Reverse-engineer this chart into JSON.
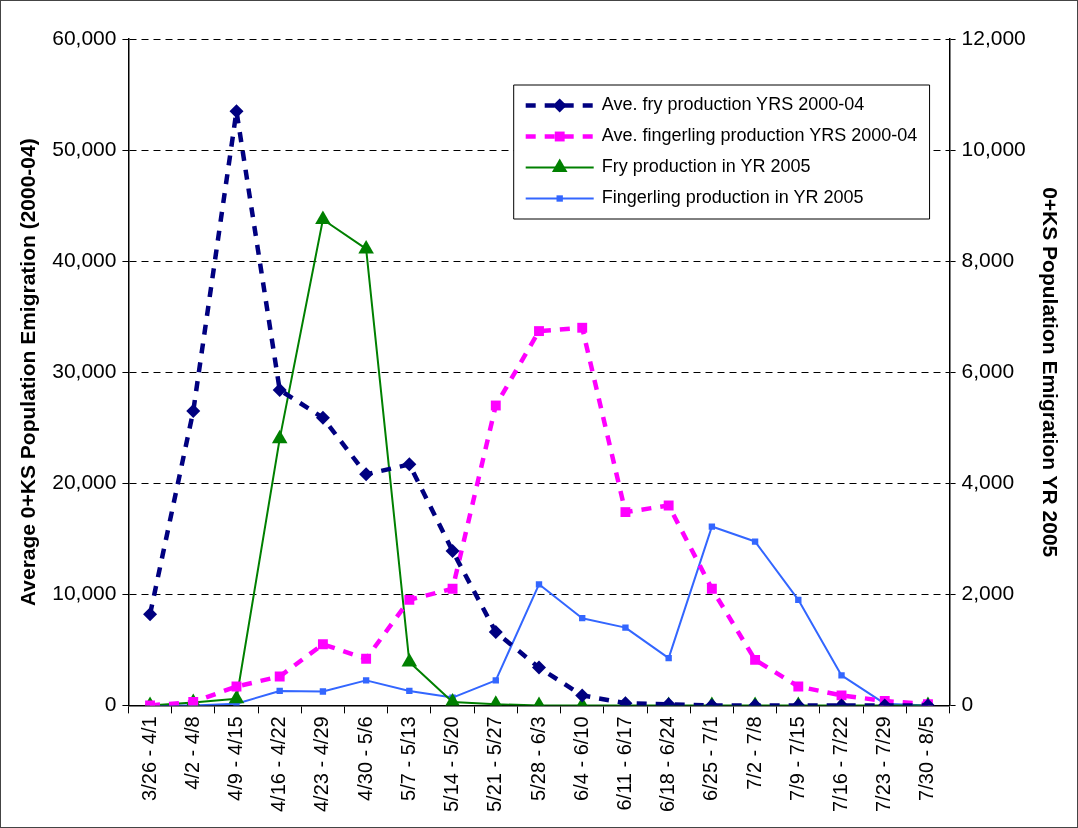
{
  "chart_data": {
    "type": "line",
    "ylabel": "Average 0+KS Population Emigration (2000-04)",
    "y2label": "0+KS Population Emigration YR 2005",
    "categories": [
      "3/26 - 4/1",
      "4/2 - 4/8",
      "4/9 - 4/15",
      "4/16 - 4/22",
      "4/23 - 4/29",
      "4/30 - 5/6",
      "5/7 - 5/13",
      "5/14 - 5/20",
      "5/21 - 5/27",
      "5/28 - 6/3",
      "6/4 - 6/10",
      "6/11 - 6/17",
      "6/18 - 6/24",
      "6/25 - 7/1",
      "7/2 - 7/8",
      "7/9 - 7/15",
      "7/16 - 7/22",
      "7/23 - 7/29",
      "7/30 - 8/5"
    ],
    "series": [
      {
        "name": "Ave. fry production YRS 2000-04",
        "color": "#000080",
        "marker": "diamond",
        "line_style": "dashed",
        "values": [
          8200,
          26500,
          53500,
          28400,
          25900,
          20800,
          21700,
          13900,
          6600,
          3400,
          900,
          200,
          100,
          0,
          0,
          0,
          0,
          0,
          0
        ]
      },
      {
        "name": "Ave. fingerling production YRS 2000-04",
        "color": "#ff00ff",
        "marker": "square",
        "line_style": "dashed",
        "values": [
          0,
          300,
          1700,
          2600,
          5500,
          4200,
          9500,
          10500,
          27000,
          33700,
          34000,
          17400,
          18000,
          10500,
          4100,
          1700,
          900,
          400,
          100
        ]
      },
      {
        "name": "Fry production in YR 2005",
        "color": "#008000",
        "marker": "triangle",
        "line_style": "solid",
        "axis": "y2",
        "values": [
          0,
          50,
          120,
          4800,
          8750,
          8220,
          780,
          60,
          20,
          0,
          0,
          0,
          0,
          0,
          0,
          0,
          0,
          0,
          0
        ]
      },
      {
        "name": "Fingerling production in YR 2005",
        "color": "#3366ff",
        "marker": "square",
        "line_style": "solid",
        "axis": "y2",
        "values": [
          0,
          0,
          30,
          260,
          250,
          450,
          260,
          140,
          450,
          2180,
          1570,
          1400,
          850,
          3220,
          2950,
          1900,
          540,
          30,
          0
        ]
      }
    ],
    "ylim": [
      0,
      60000
    ],
    "yticks": [
      {
        "value": 0,
        "label": "0"
      },
      {
        "value": 10000,
        "label": "10,000"
      },
      {
        "value": 20000,
        "label": "20,000"
      },
      {
        "value": 30000,
        "label": "30,000"
      },
      {
        "value": 40000,
        "label": "40,000"
      },
      {
        "value": 50000,
        "label": "50,000"
      },
      {
        "value": 60000,
        "label": "60,000"
      }
    ],
    "y2lim": [
      0,
      12000
    ],
    "y2ticks": [
      {
        "value": 0,
        "label": "0"
      },
      {
        "value": 2000,
        "label": "2,000"
      },
      {
        "value": 4000,
        "label": "4,000"
      },
      {
        "value": 6000,
        "label": "6,000"
      },
      {
        "value": 8000,
        "label": "8,000"
      },
      {
        "value": 10000,
        "label": "10,000"
      },
      {
        "value": 12000,
        "label": "12,000"
      }
    ],
    "grid": "y",
    "legend": "top right"
  }
}
